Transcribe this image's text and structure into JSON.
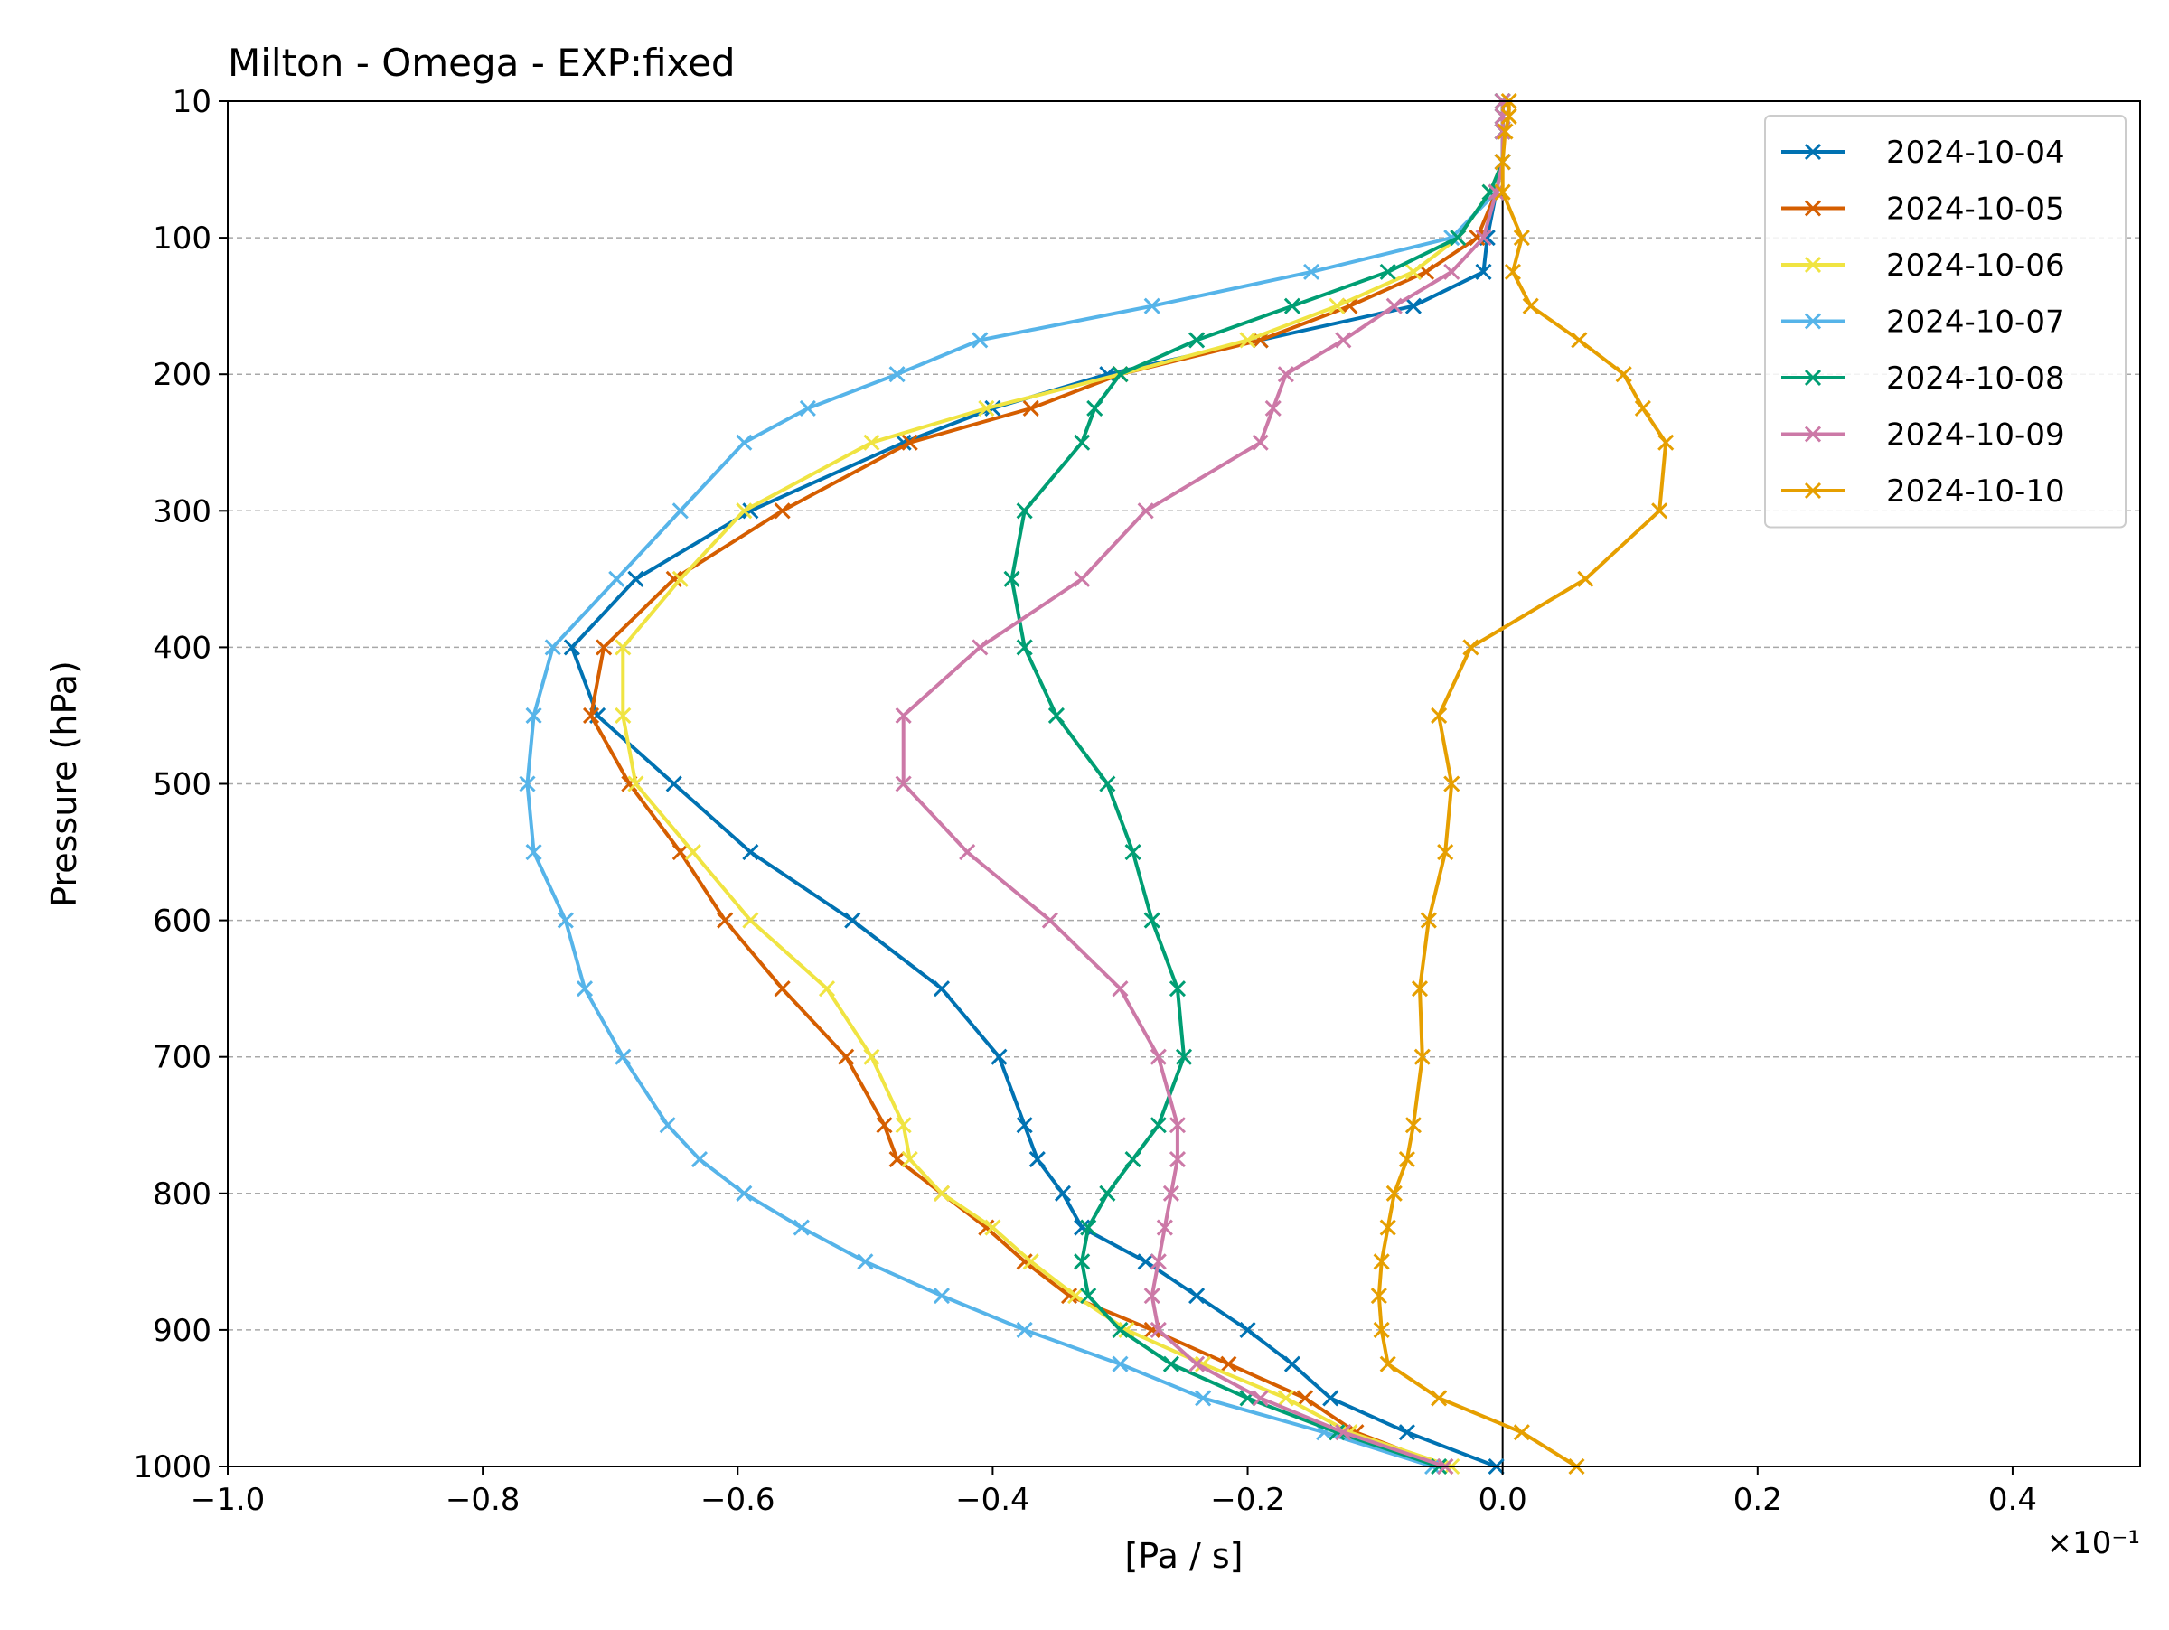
{
  "chart_data": {
    "type": "line",
    "title": "Milton - Omega - EXP:fixed",
    "xlabel": "[Pa / s]",
    "ylabel": "Pressure (hPa)",
    "x_scale_note": "×10⁻¹",
    "xlim": [
      -1.0,
      0.5
    ],
    "ylim": [
      1000,
      10
    ],
    "y_inverted": true,
    "y_scale": "quasi-log (pressure)",
    "x_ticks": [
      -1.0,
      -0.8,
      -0.6,
      -0.4,
      -0.2,
      0.0,
      0.2,
      0.4
    ],
    "x_tick_labels": [
      "−1.0",
      "−0.8",
      "−0.6",
      "−0.4",
      "−0.2",
      "0.0",
      "0.2",
      "0.4"
    ],
    "y_ticks": [
      10,
      100,
      200,
      300,
      400,
      500,
      600,
      700,
      800,
      900,
      1000
    ],
    "y_tick_labels": [
      "10",
      "100",
      "200",
      "300",
      "400",
      "500",
      "600",
      "700",
      "800",
      "900",
      "1000"
    ],
    "grid": "horizontal dashed at y ticks",
    "zero_line": true,
    "marker": "x",
    "legend_position": "top-right",
    "levels": [
      10,
      20,
      30,
      50,
      70,
      100,
      125,
      150,
      175,
      200,
      225,
      250,
      300,
      350,
      400,
      450,
      500,
      550,
      600,
      650,
      700,
      750,
      775,
      800,
      825,
      850,
      875,
      900,
      925,
      950,
      975,
      1000
    ],
    "series": [
      {
        "name": "2024-10-04",
        "color": "#0072B2",
        "values": [
          0.0,
          0.0,
          0.0,
          0.0,
          -0.005,
          -0.012,
          -0.015,
          -0.07,
          -0.19,
          -0.31,
          -0.4,
          -0.47,
          -0.59,
          -0.68,
          -0.73,
          -0.71,
          -0.65,
          -0.59,
          -0.51,
          -0.44,
          -0.395,
          -0.375,
          -0.365,
          -0.345,
          -0.33,
          -0.28,
          -0.24,
          -0.2,
          -0.165,
          -0.135,
          -0.075,
          -0.005
        ]
      },
      {
        "name": "2024-10-05",
        "color": "#D55E00",
        "values": [
          0.0,
          0.0,
          0.0,
          0.0,
          -0.005,
          -0.02,
          -0.06,
          -0.12,
          -0.19,
          -0.3,
          -0.37,
          -0.465,
          -0.565,
          -0.65,
          -0.705,
          -0.715,
          -0.685,
          -0.645,
          -0.61,
          -0.565,
          -0.515,
          -0.485,
          -0.475,
          -0.44,
          -0.405,
          -0.375,
          -0.34,
          -0.275,
          -0.215,
          -0.155,
          -0.115,
          -0.045
        ]
      },
      {
        "name": "2024-10-06",
        "color": "#F0E442",
        "values": [
          0.0,
          0.0,
          0.0,
          0.0,
          -0.01,
          -0.035,
          -0.07,
          -0.13,
          -0.2,
          -0.3,
          -0.405,
          -0.495,
          -0.595,
          -0.645,
          -0.69,
          -0.69,
          -0.68,
          -0.635,
          -0.59,
          -0.53,
          -0.495,
          -0.47,
          -0.465,
          -0.44,
          -0.4,
          -0.37,
          -0.335,
          -0.295,
          -0.235,
          -0.17,
          -0.12,
          -0.04
        ]
      },
      {
        "name": "2024-10-07",
        "color": "#56B4E9",
        "values": [
          0.0,
          0.0,
          0.0,
          0.0,
          -0.005,
          -0.04,
          -0.15,
          -0.275,
          -0.41,
          -0.475,
          -0.545,
          -0.595,
          -0.645,
          -0.695,
          -0.745,
          -0.76,
          -0.765,
          -0.76,
          -0.735,
          -0.72,
          -0.69,
          -0.655,
          -0.63,
          -0.595,
          -0.55,
          -0.5,
          -0.44,
          -0.375,
          -0.3,
          -0.235,
          -0.14,
          -0.055
        ]
      },
      {
        "name": "2024-10-08",
        "color": "#009E73",
        "values": [
          0.0,
          0.0,
          0.0,
          0.0,
          -0.01,
          -0.035,
          -0.09,
          -0.165,
          -0.24,
          -0.3,
          -0.32,
          -0.33,
          -0.375,
          -0.385,
          -0.375,
          -0.35,
          -0.31,
          -0.29,
          -0.275,
          -0.255,
          -0.25,
          -0.27,
          -0.29,
          -0.31,
          -0.325,
          -0.33,
          -0.325,
          -0.3,
          -0.26,
          -0.2,
          -0.13,
          -0.05
        ]
      },
      {
        "name": "2024-10-09",
        "color": "#CC79A7",
        "values": [
          0.0,
          0.0,
          0.0,
          0.0,
          -0.005,
          -0.015,
          -0.04,
          -0.085,
          -0.125,
          -0.17,
          -0.18,
          -0.19,
          -0.28,
          -0.33,
          -0.41,
          -0.47,
          -0.47,
          -0.42,
          -0.355,
          -0.3,
          -0.27,
          -0.255,
          -0.255,
          -0.26,
          -0.265,
          -0.27,
          -0.275,
          -0.27,
          -0.24,
          -0.19,
          -0.125,
          -0.045
        ]
      },
      {
        "name": "2024-10-10",
        "color": "#E69F00",
        "values": [
          0.005,
          0.005,
          0.002,
          0.0,
          0.0,
          0.015,
          0.008,
          0.022,
          0.06,
          0.095,
          0.11,
          0.128,
          0.123,
          0.065,
          -0.025,
          -0.05,
          -0.04,
          -0.045,
          -0.058,
          -0.065,
          -0.063,
          -0.07,
          -0.075,
          -0.085,
          -0.09,
          -0.095,
          -0.097,
          -0.095,
          -0.09,
          -0.05,
          0.015,
          0.058
        ]
      }
    ]
  }
}
